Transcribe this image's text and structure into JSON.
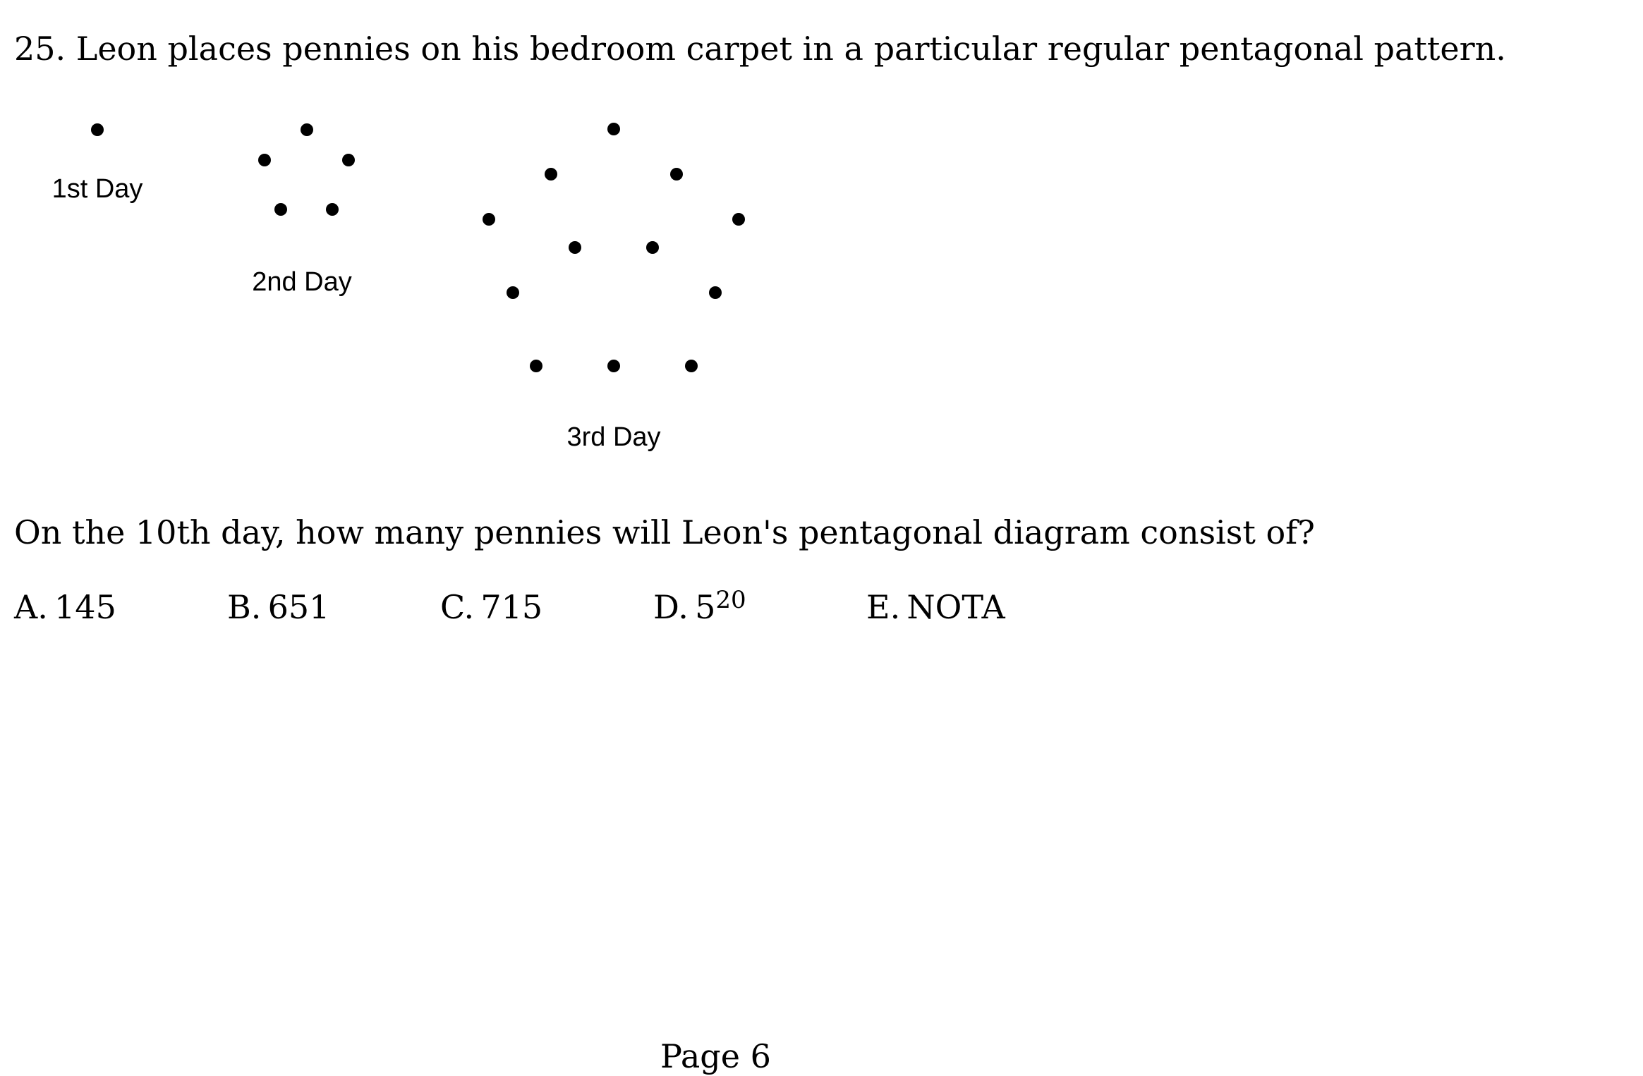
{
  "question": {
    "number_and_text": "25. Leon places pennies on his bedroom carpet in a particular regular pentagonal pattern.",
    "followup": "On the 10th day, how many pennies will Leon's pentagonal diagram consist of?"
  },
  "figure": {
    "day_labels": [
      "1st Day",
      "2nd Day",
      "3rd Day"
    ],
    "penny_counts": [
      1,
      5,
      12
    ]
  },
  "choices": [
    {
      "letter": "A.",
      "value": "145",
      "sup": ""
    },
    {
      "letter": "B.",
      "value": "651",
      "sup": ""
    },
    {
      "letter": "C.",
      "value": "715",
      "sup": ""
    },
    {
      "letter": "D.",
      "value": "5",
      "sup": "20"
    },
    {
      "letter": "E.",
      "value": "NOTA",
      "sup": ""
    }
  ],
  "footer": {
    "page": "Page 6"
  }
}
